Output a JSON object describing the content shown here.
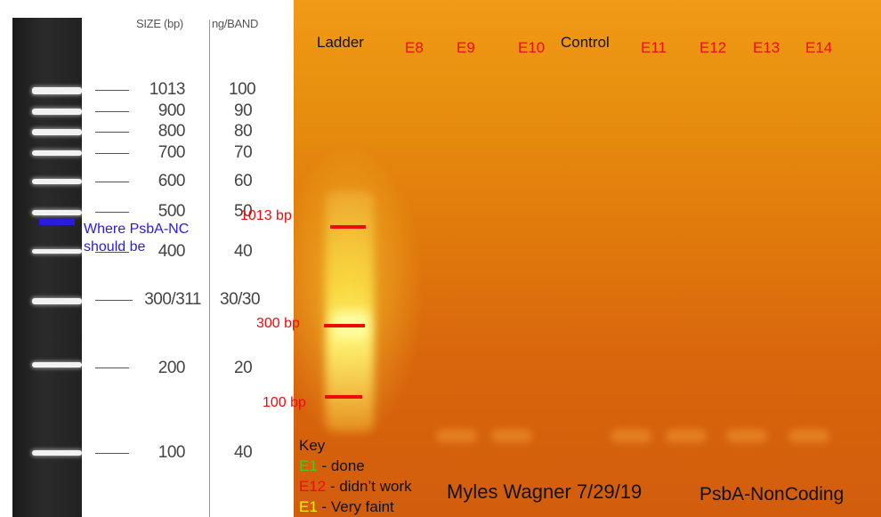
{
  "reference": {
    "header_size": "SIZE (bp)",
    "header_ng": "ng/BAND",
    "rows": [
      {
        "size": "1013",
        "ng": "100"
      },
      {
        "size": "900",
        "ng": "90"
      },
      {
        "size": "800",
        "ng": "80"
      },
      {
        "size": "700",
        "ng": "70"
      },
      {
        "size": "600",
        "ng": "60"
      },
      {
        "size": "500",
        "ng": "50"
      },
      {
        "size": "400",
        "ng": "40"
      },
      {
        "size": "300/311",
        "ng": "30/30"
      },
      {
        "size": "200",
        "ng": "20"
      },
      {
        "size": "100",
        "ng": "40"
      }
    ],
    "note_line1": "Where PsbA-NC",
    "note_line2": "should be",
    "marker_color": "#2a1be0"
  },
  "gel": {
    "lanes": [
      "Ladder",
      "E8",
      "E9",
      "E10",
      "Control",
      "E11",
      "E12",
      "E13",
      "E14"
    ],
    "bp_marks": [
      "1013 bp",
      "300 bp",
      "100 bp"
    ],
    "mark_color": "#ec0c0c"
  },
  "key": {
    "title": "Key",
    "items": [
      {
        "code": "E1",
        "text": " - done",
        "color": "#3fd01a"
      },
      {
        "code": "E12",
        "text": " - didn’t work",
        "color": "#ec0c0c"
      },
      {
        "code": "E1",
        "text": " - Very faint",
        "color": "#f5f100"
      }
    ]
  },
  "signature": "Myles Wagner 7/29/19",
  "title": "PsbA-NonCoding"
}
